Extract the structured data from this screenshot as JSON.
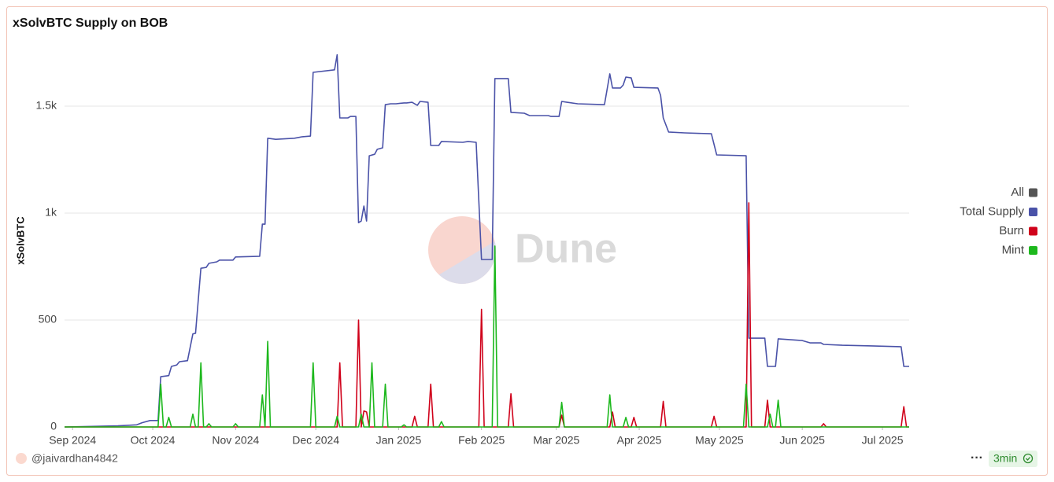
{
  "chart_data": {
    "type": "line",
    "title": "xSolvBTC Supply on BOB",
    "ylabel": "xSolvBTC",
    "watermark": "Dune",
    "grid": true,
    "legend": "right",
    "xlim": [
      -3,
      313
    ],
    "xticks": [
      {
        "value": 0,
        "label": "Sep 2024"
      },
      {
        "value": 30,
        "label": "Oct 2024"
      },
      {
        "value": 61,
        "label": "Nov 2024"
      },
      {
        "value": 91,
        "label": "Dec 2024"
      },
      {
        "value": 122,
        "label": "Jan 2025"
      },
      {
        "value": 153,
        "label": "Feb 2025"
      },
      {
        "value": 181,
        "label": "Mar 2025"
      },
      {
        "value": 212,
        "label": "Apr 2025"
      },
      {
        "value": 242,
        "label": "May 2025"
      },
      {
        "value": 273,
        "label": "Jun 2025"
      },
      {
        "value": 303,
        "label": "Jul 2025"
      }
    ],
    "ylim": [
      0,
      1750
    ],
    "yticks": [
      0,
      500,
      {
        "value": 1000,
        "label": "1k"
      },
      {
        "value": 1500,
        "label": "1.5k"
      }
    ],
    "series": [
      {
        "name": "All",
        "color": "#555555",
        "x": [],
        "values": []
      },
      {
        "name": "Total Supply",
        "color": "#4a52a8",
        "x": [
          -3,
          17,
          24,
          26,
          29,
          32,
          33,
          36,
          37,
          39,
          40,
          43,
          45,
          46,
          48,
          50,
          51,
          54,
          55,
          60,
          61,
          70,
          71,
          72,
          73,
          76,
          83,
          86,
          89,
          90,
          98,
          99,
          100,
          103,
          104,
          106,
          107,
          108,
          109,
          110,
          111,
          113,
          114,
          116,
          117,
          119,
          121,
          124,
          125,
          127,
          129,
          130,
          133,
          134,
          137,
          138,
          146,
          148,
          151,
          153,
          157,
          158,
          163,
          164,
          169,
          171,
          178,
          179,
          182,
          183,
          185,
          189,
          199,
          201,
          202,
          205,
          206,
          207,
          209,
          210,
          219,
          220,
          221,
          223,
          229,
          239,
          241,
          252,
          253,
          259,
          260,
          263,
          264,
          273,
          276,
          280,
          281,
          288,
          299,
          310,
          311,
          313
        ],
        "values": [
          0,
          5,
          10,
          20,
          30,
          30,
          235,
          240,
          283,
          290,
          305,
          310,
          435,
          438,
          742,
          746,
          765,
          772,
          780,
          780,
          795,
          798,
          948,
          948,
          1350,
          1345,
          1350,
          1357,
          1360,
          1658,
          1670,
          1740,
          1445,
          1445,
          1452,
          1452,
          955,
          963,
          1033,
          963,
          1268,
          1275,
          1298,
          1305,
          1507,
          1511,
          1511,
          1515,
          1515,
          1518,
          1504,
          1522,
          1518,
          1316,
          1316,
          1335,
          1331,
          1335,
          1331,
          783,
          783,
          1629,
          1629,
          1471,
          1467,
          1456,
          1456,
          1452,
          1452,
          1522,
          1518,
          1511,
          1507,
          1651,
          1585,
          1585,
          1599,
          1636,
          1632,
          1588,
          1585,
          1551,
          1445,
          1379,
          1375,
          1371,
          1272,
          1268,
          415,
          415,
          283,
          283,
          412,
          404,
          393,
          393,
          386,
          382,
          379,
          375,
          283,
          283
        ]
      },
      {
        "name": "Burn",
        "color": "#d0021b",
        "x": [
          -3,
          99,
          100,
          101,
          106,
          107,
          108,
          109,
          110,
          111,
          127,
          128,
          129,
          133,
          134,
          135,
          152,
          153,
          154,
          163,
          164,
          165,
          182,
          183,
          184,
          201,
          202,
          203,
          209,
          210,
          211,
          220,
          221,
          222,
          239,
          240,
          241,
          252,
          253,
          254,
          259,
          260,
          261,
          280,
          281,
          282,
          310,
          311,
          312,
          313
        ],
        "values": [
          0,
          0,
          300,
          0,
          0,
          500,
          0,
          75,
          70,
          0,
          0,
          50,
          0,
          0,
          200,
          0,
          0,
          550,
          0,
          0,
          155,
          0,
          0,
          55,
          0,
          0,
          70,
          0,
          0,
          45,
          0,
          0,
          120,
          0,
          0,
          50,
          0,
          0,
          1048,
          0,
          0,
          125,
          0,
          0,
          15,
          0,
          0,
          95,
          0,
          0
        ]
      },
      {
        "name": "Mint",
        "color": "#1db81d",
        "x": [
          -3,
          32,
          33,
          34,
          35,
          36,
          37,
          44,
          45,
          46,
          47,
          48,
          49,
          50,
          51,
          52,
          60,
          61,
          62,
          70,
          71,
          72,
          73,
          74,
          89,
          90,
          91,
          98,
          99,
          100,
          107,
          108,
          109,
          111,
          112,
          113,
          116,
          117,
          118,
          123,
          124,
          125,
          137,
          138,
          139,
          157,
          158,
          159,
          182,
          183,
          184,
          200,
          201,
          202,
          206,
          207,
          208,
          251,
          252,
          253,
          260,
          261,
          262,
          263,
          264,
          265,
          313
        ],
        "values": [
          0,
          0,
          200,
          0,
          0,
          45,
          0,
          0,
          60,
          0,
          0,
          300,
          0,
          0,
          15,
          0,
          0,
          15,
          0,
          0,
          150,
          0,
          400,
          0,
          0,
          300,
          0,
          0,
          50,
          0,
          0,
          60,
          0,
          0,
          300,
          0,
          0,
          200,
          0,
          0,
          10,
          0,
          0,
          25,
          0,
          0,
          846,
          0,
          0,
          115,
          0,
          0,
          150,
          0,
          0,
          45,
          0,
          0,
          200,
          0,
          0,
          60,
          0,
          0,
          125,
          0,
          0
        ]
      }
    ]
  },
  "footer": {
    "author": "@jaivardhan4842",
    "refresh": "3min"
  }
}
